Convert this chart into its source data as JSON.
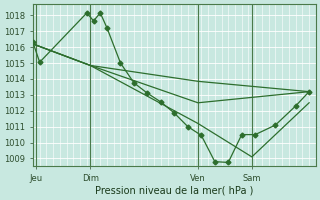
{
  "background_color": "#c8e8e0",
  "grid_color": "#ffffff",
  "line_color": "#2d6e2d",
  "title": "Pression niveau de la mer( hPa )",
  "ylim": [
    1008.5,
    1018.7
  ],
  "yticks": [
    1009,
    1010,
    1011,
    1012,
    1013,
    1014,
    1015,
    1016,
    1017,
    1018
  ],
  "xtick_labels": [
    "Jeu",
    "Dim",
    "Ven",
    "Sam"
  ],
  "xtick_positions": [
    0.5,
    8.5,
    24.5,
    32.5
  ],
  "vline_positions": [
    0.5,
    8.5,
    24.5,
    32.5
  ],
  "xlim": [
    0,
    42
  ],
  "series1": {
    "x": [
      0,
      1,
      8,
      9,
      10,
      11,
      13,
      15,
      17,
      19,
      21,
      23,
      25,
      27,
      29,
      31,
      33,
      36,
      39,
      41
    ],
    "y": [
      1016.3,
      1015.05,
      1018.15,
      1017.65,
      1018.15,
      1017.2,
      1015.0,
      1013.75,
      1013.1,
      1012.55,
      1011.85,
      1011.0,
      1010.45,
      1008.8,
      1008.75,
      1010.5,
      1010.5,
      1011.1,
      1012.3,
      1013.2
    ],
    "marker": "D",
    "markersize": 2.5
  },
  "series2": {
    "x": [
      0,
      8.5,
      24.5,
      41
    ],
    "y": [
      1016.2,
      1014.85,
      1013.85,
      1013.2
    ],
    "marker": null,
    "markersize": 0
  },
  "series3": {
    "x": [
      0,
      8.5,
      24.5,
      41
    ],
    "y": [
      1016.2,
      1014.85,
      1012.5,
      1013.2
    ],
    "marker": null,
    "markersize": 0
  },
  "series4": {
    "x": [
      0,
      8.5,
      24.5,
      32.5,
      41
    ],
    "y": [
      1016.2,
      1014.85,
      1011.2,
      1009.1,
      1012.5
    ],
    "marker": null,
    "markersize": 0
  }
}
